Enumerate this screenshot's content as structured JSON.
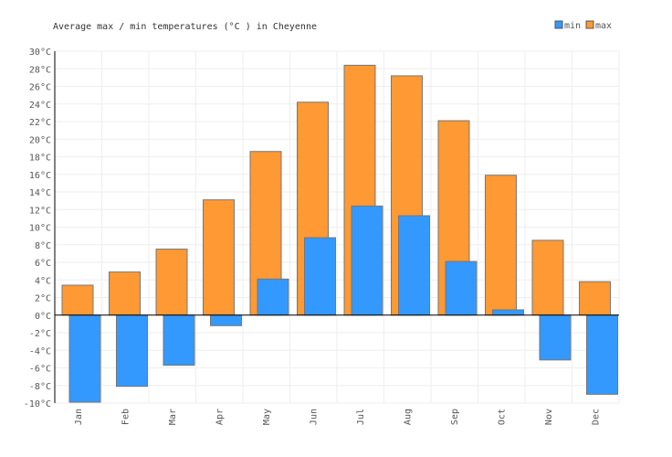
{
  "chart_data": {
    "type": "bar",
    "title": "Average max / min temperatures (°C ) in Cheyenne",
    "categories": [
      "Jan",
      "Feb",
      "Mar",
      "Apr",
      "May",
      "Jun",
      "Jul",
      "Aug",
      "Sep",
      "Oct",
      "Nov",
      "Dec"
    ],
    "series": [
      {
        "name": "min",
        "color": "#3399ff",
        "values": [
          -9.9,
          -8.1,
          -5.7,
          -1.2,
          4.1,
          8.8,
          12.4,
          11.3,
          6.1,
          0.6,
          -5.1,
          -9.0
        ]
      },
      {
        "name": "max",
        "color": "#ff9933",
        "values": [
          3.4,
          4.9,
          7.5,
          13.1,
          18.6,
          24.2,
          28.4,
          27.2,
          22.1,
          15.9,
          8.5,
          3.8
        ]
      }
    ],
    "ylim": [
      -10,
      30
    ],
    "ytick_step": 2,
    "y_unit": "°C",
    "grid": true,
    "legend_position": "top-right"
  }
}
